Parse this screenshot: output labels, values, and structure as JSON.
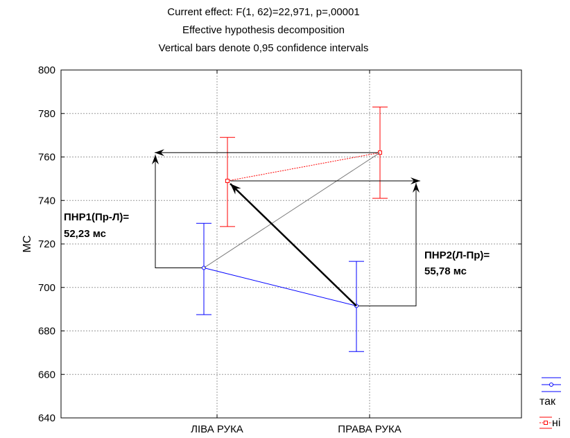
{
  "chart_data": {
    "type": "line",
    "title": "Current effect: F(1, 62)=22,971, p=,00001",
    "subtitle": "Effective hypothesis decomposition",
    "note": "Vertical bars denote 0,95 confidence intervals",
    "xlabel": "",
    "ylabel": "МС",
    "categories": [
      "ЛІВА РУКА",
      "ПРАВА РУКА"
    ],
    "ylim": [
      640,
      800
    ],
    "yticks": [
      640,
      660,
      680,
      700,
      720,
      740,
      760,
      780,
      800
    ],
    "ytick_labels": [
      "640",
      "660",
      "680",
      "700",
      "720",
      "740",
      "760",
      "780",
      "800"
    ],
    "grid": true,
    "legend_position": "bottom-right",
    "series": [
      {
        "name": "так",
        "color": "#0000ff",
        "marker": "circle",
        "values": [
          709,
          691.5
        ],
        "ci_low": [
          687.5,
          670.5
        ],
        "ci_high": [
          729.5,
          712
        ]
      },
      {
        "name": "ні",
        "color": "#ff0000",
        "marker": "square",
        "values": [
          749,
          762
        ],
        "ci_low": [
          728,
          741
        ],
        "ci_high": [
          769,
          783
        ]
      }
    ],
    "annotations": [
      {
        "line1": "ПНР1(Пр-Л)=",
        "line2": "52,23 мс"
      },
      {
        "line1": "ПНР2(Л-Пр)=",
        "line2": "55,78 мс"
      }
    ]
  }
}
